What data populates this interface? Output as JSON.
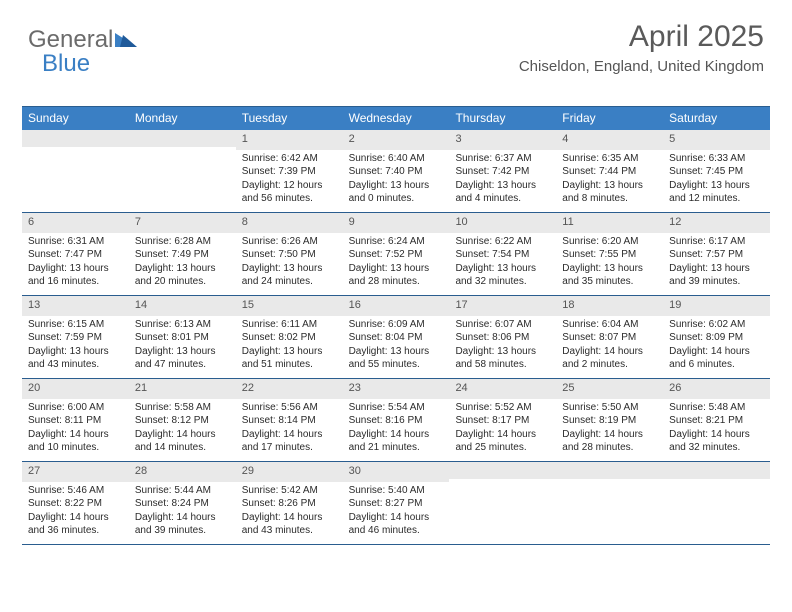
{
  "logo": {
    "general": "General",
    "blue": "Blue"
  },
  "header": {
    "title": "April 2025",
    "location": "Chiseldon, England, United Kingdom"
  },
  "colors": {
    "header_bg": "#3a7fc4",
    "header_text": "#ffffff",
    "num_row_bg": "#e9e9e9",
    "border": "#2a5d8f",
    "logo_gray": "#6b6b6b",
    "logo_blue": "#3a7fc4"
  },
  "day_names": [
    "Sunday",
    "Monday",
    "Tuesday",
    "Wednesday",
    "Thursday",
    "Friday",
    "Saturday"
  ],
  "weeks": [
    [
      {
        "num": "",
        "sunrise": "",
        "sunset": "",
        "daylight": ""
      },
      {
        "num": "",
        "sunrise": "",
        "sunset": "",
        "daylight": ""
      },
      {
        "num": "1",
        "sunrise": "Sunrise: 6:42 AM",
        "sunset": "Sunset: 7:39 PM",
        "daylight": "Daylight: 12 hours and 56 minutes."
      },
      {
        "num": "2",
        "sunrise": "Sunrise: 6:40 AM",
        "sunset": "Sunset: 7:40 PM",
        "daylight": "Daylight: 13 hours and 0 minutes."
      },
      {
        "num": "3",
        "sunrise": "Sunrise: 6:37 AM",
        "sunset": "Sunset: 7:42 PM",
        "daylight": "Daylight: 13 hours and 4 minutes."
      },
      {
        "num": "4",
        "sunrise": "Sunrise: 6:35 AM",
        "sunset": "Sunset: 7:44 PM",
        "daylight": "Daylight: 13 hours and 8 minutes."
      },
      {
        "num": "5",
        "sunrise": "Sunrise: 6:33 AM",
        "sunset": "Sunset: 7:45 PM",
        "daylight": "Daylight: 13 hours and 12 minutes."
      }
    ],
    [
      {
        "num": "6",
        "sunrise": "Sunrise: 6:31 AM",
        "sunset": "Sunset: 7:47 PM",
        "daylight": "Daylight: 13 hours and 16 minutes."
      },
      {
        "num": "7",
        "sunrise": "Sunrise: 6:28 AM",
        "sunset": "Sunset: 7:49 PM",
        "daylight": "Daylight: 13 hours and 20 minutes."
      },
      {
        "num": "8",
        "sunrise": "Sunrise: 6:26 AM",
        "sunset": "Sunset: 7:50 PM",
        "daylight": "Daylight: 13 hours and 24 minutes."
      },
      {
        "num": "9",
        "sunrise": "Sunrise: 6:24 AM",
        "sunset": "Sunset: 7:52 PM",
        "daylight": "Daylight: 13 hours and 28 minutes."
      },
      {
        "num": "10",
        "sunrise": "Sunrise: 6:22 AM",
        "sunset": "Sunset: 7:54 PM",
        "daylight": "Daylight: 13 hours and 32 minutes."
      },
      {
        "num": "11",
        "sunrise": "Sunrise: 6:20 AM",
        "sunset": "Sunset: 7:55 PM",
        "daylight": "Daylight: 13 hours and 35 minutes."
      },
      {
        "num": "12",
        "sunrise": "Sunrise: 6:17 AM",
        "sunset": "Sunset: 7:57 PM",
        "daylight": "Daylight: 13 hours and 39 minutes."
      }
    ],
    [
      {
        "num": "13",
        "sunrise": "Sunrise: 6:15 AM",
        "sunset": "Sunset: 7:59 PM",
        "daylight": "Daylight: 13 hours and 43 minutes."
      },
      {
        "num": "14",
        "sunrise": "Sunrise: 6:13 AM",
        "sunset": "Sunset: 8:01 PM",
        "daylight": "Daylight: 13 hours and 47 minutes."
      },
      {
        "num": "15",
        "sunrise": "Sunrise: 6:11 AM",
        "sunset": "Sunset: 8:02 PM",
        "daylight": "Daylight: 13 hours and 51 minutes."
      },
      {
        "num": "16",
        "sunrise": "Sunrise: 6:09 AM",
        "sunset": "Sunset: 8:04 PM",
        "daylight": "Daylight: 13 hours and 55 minutes."
      },
      {
        "num": "17",
        "sunrise": "Sunrise: 6:07 AM",
        "sunset": "Sunset: 8:06 PM",
        "daylight": "Daylight: 13 hours and 58 minutes."
      },
      {
        "num": "18",
        "sunrise": "Sunrise: 6:04 AM",
        "sunset": "Sunset: 8:07 PM",
        "daylight": "Daylight: 14 hours and 2 minutes."
      },
      {
        "num": "19",
        "sunrise": "Sunrise: 6:02 AM",
        "sunset": "Sunset: 8:09 PM",
        "daylight": "Daylight: 14 hours and 6 minutes."
      }
    ],
    [
      {
        "num": "20",
        "sunrise": "Sunrise: 6:00 AM",
        "sunset": "Sunset: 8:11 PM",
        "daylight": "Daylight: 14 hours and 10 minutes."
      },
      {
        "num": "21",
        "sunrise": "Sunrise: 5:58 AM",
        "sunset": "Sunset: 8:12 PM",
        "daylight": "Daylight: 14 hours and 14 minutes."
      },
      {
        "num": "22",
        "sunrise": "Sunrise: 5:56 AM",
        "sunset": "Sunset: 8:14 PM",
        "daylight": "Daylight: 14 hours and 17 minutes."
      },
      {
        "num": "23",
        "sunrise": "Sunrise: 5:54 AM",
        "sunset": "Sunset: 8:16 PM",
        "daylight": "Daylight: 14 hours and 21 minutes."
      },
      {
        "num": "24",
        "sunrise": "Sunrise: 5:52 AM",
        "sunset": "Sunset: 8:17 PM",
        "daylight": "Daylight: 14 hours and 25 minutes."
      },
      {
        "num": "25",
        "sunrise": "Sunrise: 5:50 AM",
        "sunset": "Sunset: 8:19 PM",
        "daylight": "Daylight: 14 hours and 28 minutes."
      },
      {
        "num": "26",
        "sunrise": "Sunrise: 5:48 AM",
        "sunset": "Sunset: 8:21 PM",
        "daylight": "Daylight: 14 hours and 32 minutes."
      }
    ],
    [
      {
        "num": "27",
        "sunrise": "Sunrise: 5:46 AM",
        "sunset": "Sunset: 8:22 PM",
        "daylight": "Daylight: 14 hours and 36 minutes."
      },
      {
        "num": "28",
        "sunrise": "Sunrise: 5:44 AM",
        "sunset": "Sunset: 8:24 PM",
        "daylight": "Daylight: 14 hours and 39 minutes."
      },
      {
        "num": "29",
        "sunrise": "Sunrise: 5:42 AM",
        "sunset": "Sunset: 8:26 PM",
        "daylight": "Daylight: 14 hours and 43 minutes."
      },
      {
        "num": "30",
        "sunrise": "Sunrise: 5:40 AM",
        "sunset": "Sunset: 8:27 PM",
        "daylight": "Daylight: 14 hours and 46 minutes."
      },
      {
        "num": "",
        "sunrise": "",
        "sunset": "",
        "daylight": ""
      },
      {
        "num": "",
        "sunrise": "",
        "sunset": "",
        "daylight": ""
      },
      {
        "num": "",
        "sunrise": "",
        "sunset": "",
        "daylight": ""
      }
    ]
  ]
}
